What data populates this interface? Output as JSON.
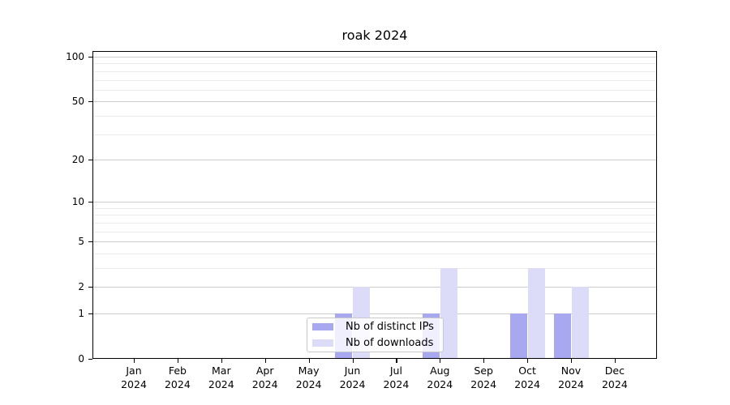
{
  "chart_data": {
    "type": "bar",
    "title": "roak 2024",
    "x_categories": [
      "Jan",
      "Feb",
      "Mar",
      "Apr",
      "May",
      "Jun",
      "Jul",
      "Aug",
      "Sep",
      "Oct",
      "Nov",
      "Dec"
    ],
    "x_year": "2024",
    "series": [
      {
        "name": "Nb of distinct IPs",
        "color": "#a8a8f0",
        "values": [
          0,
          0,
          0,
          0,
          0,
          1,
          0,
          1,
          0,
          1,
          1,
          0
        ]
      },
      {
        "name": "Nb of downloads",
        "color": "#dcdcf8",
        "values": [
          0,
          0,
          0,
          0,
          0,
          2,
          0,
          3,
          0,
          3,
          2,
          0
        ]
      }
    ],
    "yscale": "log(1+x)",
    "ylim": [
      0,
      110
    ],
    "yticks": [
      0,
      1,
      2,
      5,
      10,
      20,
      50,
      100
    ],
    "yticks_minor": [
      3,
      4,
      6,
      7,
      8,
      9,
      30,
      40,
      60,
      70,
      80,
      90
    ],
    "grid": true,
    "legend_position": "bottom-center-inside"
  },
  "colors": {
    "grid_major": "#cccccc",
    "grid_minor": "#ebebeb",
    "frame": "#000000",
    "text": "#000000"
  }
}
